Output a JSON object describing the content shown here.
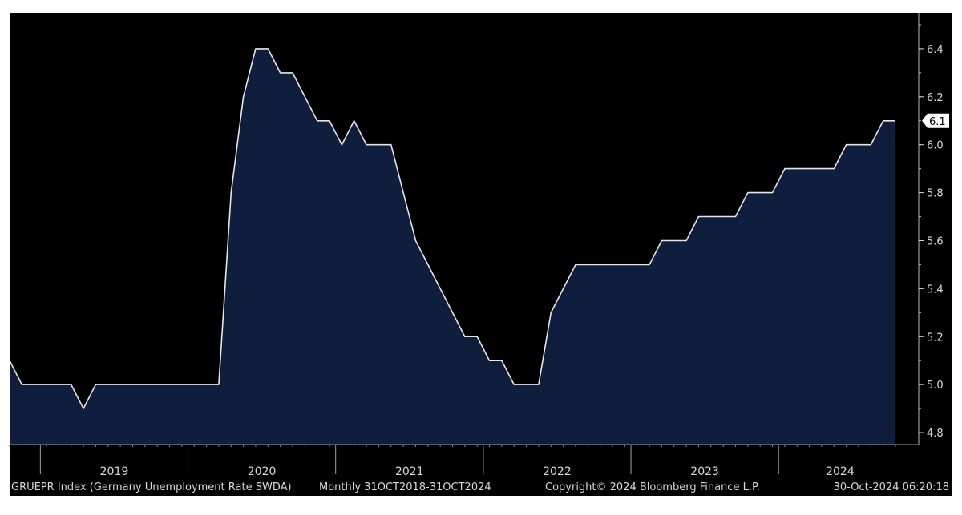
{
  "chart_data": {
    "type": "area",
    "title": "",
    "xlabel": "",
    "ylabel": "",
    "x": [
      "2018-10",
      "2018-11",
      "2018-12",
      "2019-01",
      "2019-02",
      "2019-03",
      "2019-04",
      "2019-05",
      "2019-06",
      "2019-07",
      "2019-08",
      "2019-09",
      "2019-10",
      "2019-11",
      "2019-12",
      "2020-01",
      "2020-02",
      "2020-03",
      "2020-04",
      "2020-05",
      "2020-06",
      "2020-07",
      "2020-08",
      "2020-09",
      "2020-10",
      "2020-11",
      "2020-12",
      "2021-01",
      "2021-02",
      "2021-03",
      "2021-04",
      "2021-05",
      "2021-06",
      "2021-07",
      "2021-08",
      "2021-09",
      "2021-10",
      "2021-11",
      "2021-12",
      "2022-01",
      "2022-02",
      "2022-03",
      "2022-04",
      "2022-05",
      "2022-06",
      "2022-07",
      "2022-08",
      "2022-09",
      "2022-10",
      "2022-11",
      "2022-12",
      "2023-01",
      "2023-02",
      "2023-03",
      "2023-04",
      "2023-05",
      "2023-06",
      "2023-07",
      "2023-08",
      "2023-09",
      "2023-10",
      "2023-11",
      "2023-12",
      "2024-01",
      "2024-02",
      "2024-03",
      "2024-04",
      "2024-05",
      "2024-06",
      "2024-07",
      "2024-08",
      "2024-09",
      "2024-10"
    ],
    "series": [
      {
        "values": [
          5.1,
          5.0,
          5.0,
          5.0,
          5.0,
          5.0,
          4.9,
          5.0,
          5.0,
          5.0,
          5.0,
          5.0,
          5.0,
          5.0,
          5.0,
          5.0,
          5.0,
          5.0,
          5.8,
          6.2,
          6.4,
          6.4,
          6.3,
          6.3,
          6.2,
          6.1,
          6.1,
          6.0,
          6.1,
          6.0,
          6.0,
          6.0,
          5.8,
          5.6,
          5.5,
          5.4,
          5.3,
          5.2,
          5.2,
          5.1,
          5.1,
          5.0,
          5.0,
          5.0,
          5.3,
          5.4,
          5.5,
          5.5,
          5.5,
          5.5,
          5.5,
          5.5,
          5.5,
          5.6,
          5.6,
          5.6,
          5.7,
          5.7,
          5.7,
          5.7,
          5.8,
          5.8,
          5.8,
          5.9,
          5.9,
          5.9,
          5.9,
          5.9,
          6.0,
          6.0,
          6.0,
          6.1,
          6.1
        ]
      }
    ],
    "ylim": [
      4.75,
      6.55
    ],
    "yticks": [
      "4.8",
      "5.0",
      "5.2",
      "5.4",
      "5.6",
      "5.8",
      "6.0",
      "6.2",
      "6.4"
    ],
    "year_labels": [
      "2019",
      "2020",
      "2021",
      "2022",
      "2023",
      "2024"
    ],
    "last_value_label": "6.1",
    "grid": false,
    "axis_position": "right",
    "colors": {
      "background": "#000000",
      "fill": "#0e1e3c",
      "line": "#e6e6e6",
      "text": "#d8d8d8"
    }
  },
  "footer": {
    "ticker": "GRUEPR Index (Germany Unemployment Rate SWDA)",
    "period": "Monthly 31OCT2018-31OCT2024",
    "copyright": "Copyright© 2024 Bloomberg Finance L.P.",
    "timestamp": "30-Oct-2024 06:20:18"
  }
}
